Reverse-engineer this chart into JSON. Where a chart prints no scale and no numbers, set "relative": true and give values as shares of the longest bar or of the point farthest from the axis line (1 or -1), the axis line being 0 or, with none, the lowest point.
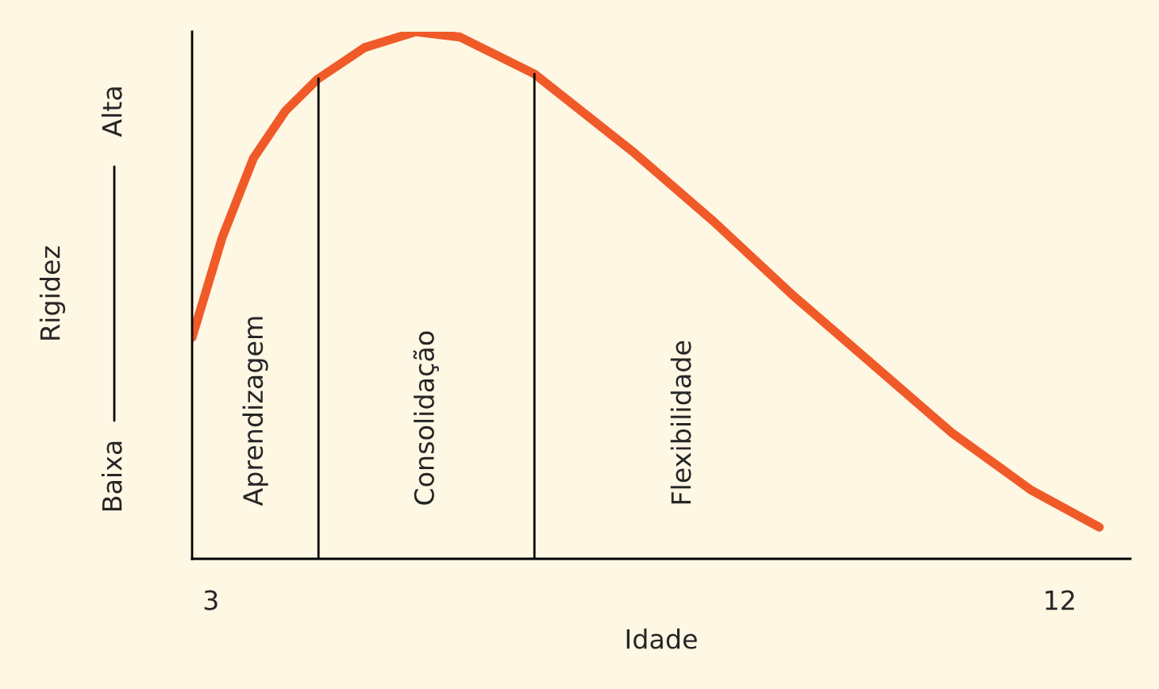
{
  "chart_data": {
    "type": "line",
    "relative": true,
    "xlabel": "Idade",
    "ylabel": "Rigidez",
    "x": [
      2.8,
      3.12,
      3.45,
      3.79,
      4.13,
      4.63,
      5.17,
      5.64,
      6.43,
      7.49,
      8.33,
      9.17,
      10.01,
      10.85,
      11.7,
      12.42
    ],
    "series": [
      {
        "color": "#f05a28",
        "values": [
          0.42,
          0.61,
          0.76,
          0.85,
          0.91,
          0.97,
          1.0,
          0.99,
          0.92,
          0.77,
          0.64,
          0.5,
          0.37,
          0.24,
          0.13,
          0.06
        ]
      }
    ],
    "xlim": [
      2.8,
      12.75
    ],
    "xticks": [
      3,
      12
    ],
    "tick_labels": "x",
    "grid": false,
    "ref_lines": [
      {
        "axis": "x",
        "value": 4.14,
        "color": "#000000"
      },
      {
        "axis": "x",
        "value": 6.43,
        "color": "#000000"
      }
    ],
    "annotations": [
      "Baixa",
      "Alta",
      "Aprendizagem",
      "Consolidação",
      "Flexibilidade"
    ]
  }
}
